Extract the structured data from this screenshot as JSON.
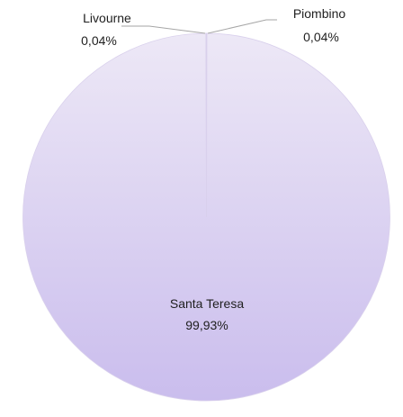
{
  "chart_data": {
    "type": "pie",
    "title": "",
    "slices": [
      {
        "label": "Santa Teresa",
        "value": 99.93,
        "value_label": "99,93%",
        "color": "#d6cdee"
      },
      {
        "label": "Livourne",
        "value": 0.04,
        "value_label": "0,04%",
        "color": "#d6cdee"
      },
      {
        "label": "Piombino",
        "value": 0.04,
        "value_label": "0,04%",
        "color": "#d6cdee"
      }
    ],
    "gradient": {
      "top": "#ede8f6",
      "bottom": "#cabded"
    },
    "legend": "none",
    "start_angle": "top"
  }
}
